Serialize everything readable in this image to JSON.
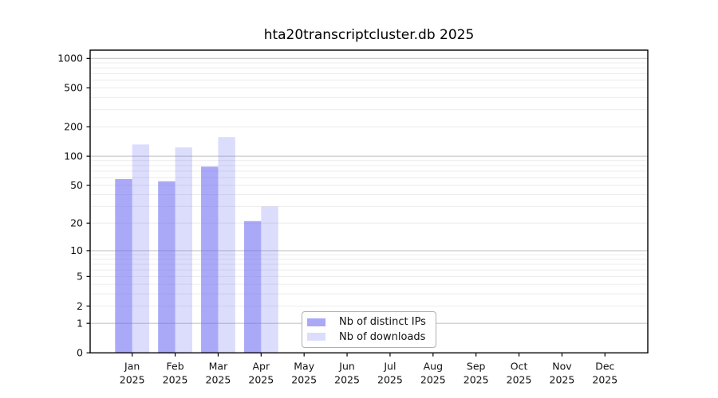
{
  "figure": {
    "background_color": "#ffffff",
    "text_color": "#111111",
    "axis_color": "#000000",
    "grid_major_color": "#c6c6c6",
    "grid_minor_color": "#ececec"
  },
  "chart_data": {
    "type": "bar",
    "title": "hta20transcriptcluster.db 2025",
    "categories": [
      {
        "label": "Jan",
        "sublabel": "2025"
      },
      {
        "label": "Feb",
        "sublabel": "2025"
      },
      {
        "label": "Mar",
        "sublabel": "2025"
      },
      {
        "label": "Apr",
        "sublabel": "2025"
      },
      {
        "label": "May",
        "sublabel": "2025"
      },
      {
        "label": "Jun",
        "sublabel": "2025"
      },
      {
        "label": "Jul",
        "sublabel": "2025"
      },
      {
        "label": "Aug",
        "sublabel": "2025"
      },
      {
        "label": "Sep",
        "sublabel": "2025"
      },
      {
        "label": "Oct",
        "sublabel": "2025"
      },
      {
        "label": "Nov",
        "sublabel": "2025"
      },
      {
        "label": "Dec",
        "sublabel": "2025"
      }
    ],
    "series": [
      {
        "name": "Nb of distinct IPs",
        "color": "rgba(102,102,240,0.56)",
        "apparent_color": "#a9a9f5",
        "values": [
          58,
          55,
          78,
          21,
          0,
          0,
          0,
          0,
          0,
          0,
          0,
          0
        ]
      },
      {
        "name": "Nb of downloads",
        "color": "rgba(102,102,240,0.23)",
        "apparent_color": "#dcdcf9",
        "values": [
          132,
          123,
          157,
          30,
          0,
          0,
          0,
          0,
          0,
          0,
          0,
          0
        ]
      }
    ],
    "y_axis": {
      "scale": "log10(1+x)",
      "tick_values": [
        0,
        1,
        2,
        5,
        10,
        20,
        50,
        100,
        200,
        500,
        1000
      ],
      "major_grid_values": [
        1,
        10,
        100,
        1000
      ],
      "ylim": [
        0,
        1000
      ]
    },
    "legend": {
      "position": "inside-bottom-center",
      "entries": [
        "Nb of distinct IPs",
        "Nb of downloads"
      ]
    },
    "grid": true
  }
}
